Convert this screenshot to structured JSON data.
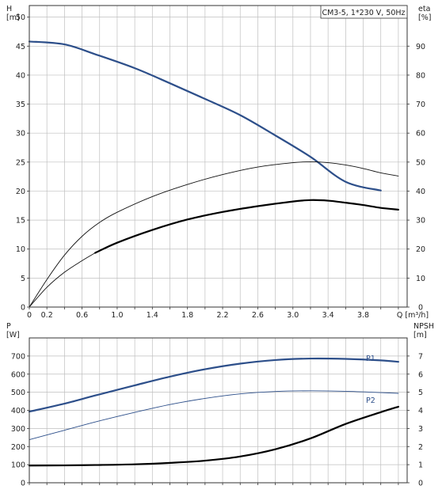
{
  "chart_data": [
    {
      "type": "line",
      "title": "CM3-5, 1*230 V, 50Hz",
      "xlabel": "Q [m³/h]",
      "ylabel_left": "H [m]",
      "ylabel_right": "eta [%]",
      "xlim": [
        0,
        4.3
      ],
      "ylim_left": [
        0,
        52
      ],
      "ylim_right": [
        0,
        104
      ],
      "x_ticks": [
        "0",
        "0.2",
        "0.6",
        "1.0",
        "1.4",
        "1.8",
        "2.2",
        "2.6",
        "3.0",
        "3.4",
        "3.8",
        "Q [m³/h]"
      ],
      "x_tick_values": [
        0,
        0.2,
        0.6,
        1.0,
        1.4,
        1.8,
        2.2,
        2.6,
        3.0,
        3.4,
        3.8,
        4.2
      ],
      "y_ticks_left": [
        "0",
        "5",
        "10",
        "15",
        "20",
        "25",
        "30",
        "35",
        "40",
        "45",
        "50"
      ],
      "y_ticks_right": [
        "0",
        "10",
        "20",
        "30",
        "40",
        "50",
        "60",
        "70",
        "80",
        "90"
      ],
      "grid": true,
      "series": [
        {
          "axis": "left",
          "weight": "bold",
          "color": "#2d4f8a",
          "x": [
            0,
            0.4,
            0.75,
            1.2,
            1.6,
            2.0,
            2.4,
            2.8,
            3.2,
            3.6,
            4.0
          ],
          "y": [
            45.8,
            45.3,
            43.6,
            41.2,
            38.6,
            35.9,
            33.1,
            29.6,
            25.9,
            21.6,
            20.1
          ]
        },
        {
          "axis": "right",
          "weight": "thin",
          "color": "#111111",
          "x": [
            0,
            0.2,
            0.4,
            0.6,
            0.8,
            1.0,
            1.4,
            1.8,
            2.2,
            2.6,
            3.0,
            3.2,
            3.4,
            3.6,
            3.8,
            4.0,
            4.2
          ],
          "y": [
            0,
            9.5,
            17.9,
            24.4,
            29.2,
            32.7,
            38.1,
            42.3,
            45.7,
            48.3,
            49.8,
            50.1,
            49.8,
            49.0,
            47.8,
            46.3,
            45.2
          ]
        },
        {
          "axis": "right",
          "weight": "thin",
          "color": "#111111",
          "x": [
            0,
            0.2,
            0.4,
            0.6,
            0.75
          ],
          "y": [
            0,
            6.8,
            12.0,
            16.0,
            18.7
          ]
        },
        {
          "axis": "right",
          "weight": "bold",
          "color": "#000000",
          "x": [
            0.75,
            1.0,
            1.4,
            1.8,
            2.2,
            2.6,
            3.0,
            3.2,
            3.4,
            3.6,
            3.8,
            4.0,
            4.2
          ],
          "y": [
            18.7,
            22.2,
            26.6,
            30.2,
            32.8,
            34.8,
            36.4,
            36.9,
            36.7,
            36.0,
            35.2,
            34.2,
            33.6
          ]
        }
      ]
    },
    {
      "type": "line",
      "xlabel": "",
      "ylabel_left": "P [W]",
      "ylabel_right": "NPSH [m]",
      "xlim": [
        0,
        4.3
      ],
      "ylim_left": [
        0,
        800
      ],
      "ylim_right": [
        0,
        8
      ],
      "y_ticks_left": [
        "0",
        "100",
        "200",
        "300",
        "400",
        "500",
        "600",
        "700"
      ],
      "y_ticks_right": [
        "0",
        "1",
        "2",
        "3",
        "4",
        "5",
        "6",
        "7"
      ],
      "grid": true,
      "curve_labels": [
        "P1",
        "P2"
      ],
      "series": [
        {
          "label": "P1",
          "axis": "left",
          "weight": "bold",
          "color": "#2d4f8a",
          "x": [
            0,
            0.4,
            0.75,
            1.2,
            1.6,
            2.0,
            2.4,
            2.8,
            3.2,
            3.6,
            4.0,
            4.2
          ],
          "y": [
            393,
            437,
            482,
            538,
            586,
            627,
            658,
            678,
            686,
            684,
            676,
            668
          ]
        },
        {
          "label": "P2",
          "axis": "left",
          "weight": "thin",
          "color": "#2d4f8a",
          "x": [
            0,
            0.4,
            0.75,
            1.2,
            1.6,
            2.0,
            2.4,
            2.8,
            3.2,
            3.6,
            4.0,
            4.2
          ],
          "y": [
            238,
            290,
            336,
            389,
            432,
            466,
            491,
            504,
            508,
            505,
            498,
            494
          ]
        },
        {
          "axis": "right",
          "weight": "bold",
          "color": "#000000",
          "x": [
            0,
            0.4,
            0.75,
            1.2,
            1.6,
            2.0,
            2.4,
            2.8,
            3.2,
            3.6,
            4.0,
            4.2
          ],
          "y": [
            0.95,
            0.96,
            0.98,
            1.02,
            1.1,
            1.22,
            1.45,
            1.85,
            2.45,
            3.25,
            3.9,
            4.2
          ]
        }
      ]
    }
  ]
}
